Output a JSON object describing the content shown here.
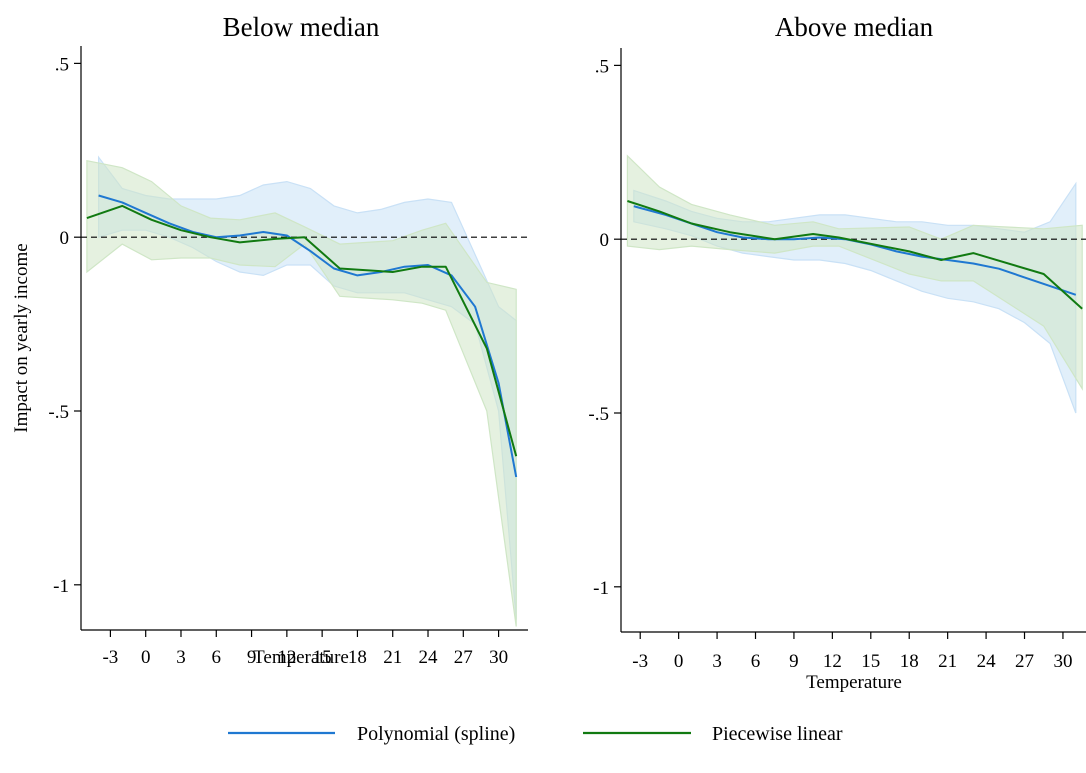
{
  "legend": {
    "placement": "bottom",
    "items": [
      {
        "label": "Polynomial (spline)",
        "color": "#1f78d1"
      },
      {
        "label": "Piecewise linear",
        "color": "#117a11"
      }
    ]
  },
  "colors": {
    "spline_band": "#c9e1f6",
    "piecewise_band": "#cfe6c6",
    "zero_line": "#000000"
  },
  "chart_data": [
    {
      "type": "line",
      "title": "Below median",
      "xlabel": "Temperature",
      "ylabel": "Impact on yearly income",
      "xlim": [
        -5.5,
        32.5
      ],
      "ylim": [
        -1.13,
        0.55
      ],
      "xticks": [
        -3,
        0,
        3,
        6,
        9,
        12,
        15,
        18,
        21,
        24,
        27,
        30
      ],
      "xtick_labels": [
        "-3",
        "0",
        "3",
        "6",
        "9",
        "12",
        "15",
        "18",
        "21",
        "24",
        "27",
        "30"
      ],
      "yticks": [
        0.5,
        0,
        -0.5,
        -1
      ],
      "ytick_labels": [
        ".5",
        "0",
        "-.5",
        "-1"
      ],
      "zero_line": true,
      "grid": false,
      "series": [
        {
          "name": "Polynomial (spline)",
          "color": "#1f78d1",
          "x": [
            -4,
            -2,
            0,
            2,
            4,
            6,
            8,
            10,
            12,
            14,
            16,
            18,
            20,
            22,
            24,
            26,
            28,
            30,
            31.5
          ],
          "y": [
            0.12,
            0.1,
            0.07,
            0.04,
            0.015,
            0.0,
            0.005,
            0.015,
            0.005,
            -0.04,
            -0.09,
            -0.11,
            -0.1,
            -0.085,
            -0.08,
            -0.11,
            -0.2,
            -0.42,
            -0.69
          ],
          "ci_lower": [
            0.0,
            0.02,
            0.02,
            0.0,
            -0.03,
            -0.07,
            -0.1,
            -0.11,
            -0.08,
            -0.08,
            -0.14,
            -0.16,
            -0.16,
            -0.16,
            -0.18,
            -0.2,
            -0.25,
            -0.5,
            -1.1
          ],
          "ci_upper": [
            0.23,
            0.14,
            0.12,
            0.11,
            0.11,
            0.11,
            0.12,
            0.15,
            0.16,
            0.14,
            0.09,
            0.07,
            0.08,
            0.1,
            0.11,
            0.1,
            -0.05,
            -0.2,
            -0.24
          ]
        },
        {
          "name": "Piecewise linear",
          "color": "#117a11",
          "x": [
            -5,
            -2,
            0.5,
            3,
            5.5,
            8,
            11,
            13.5,
            16.5,
            21,
            23.5,
            25.5,
            29,
            31.5
          ],
          "y": [
            0.055,
            0.09,
            0.05,
            0.02,
            0.0,
            -0.015,
            -0.005,
            0.0,
            -0.09,
            -0.1,
            -0.085,
            -0.085,
            -0.32,
            -0.63
          ],
          "ci_lower": [
            -0.1,
            -0.02,
            -0.065,
            -0.06,
            -0.06,
            -0.08,
            -0.085,
            -0.02,
            -0.17,
            -0.18,
            -0.19,
            -0.21,
            -0.5,
            -1.12
          ],
          "ci_upper": [
            0.22,
            0.2,
            0.16,
            0.09,
            0.055,
            0.05,
            0.07,
            0.03,
            -0.02,
            -0.01,
            0.02,
            0.04,
            -0.13,
            -0.15
          ]
        }
      ]
    },
    {
      "type": "line",
      "title": "Above median",
      "xlabel": "Temperature",
      "ylabel": "",
      "xlim": [
        -4.5,
        31.8
      ],
      "ylim": [
        -1.13,
        0.55
      ],
      "xticks": [
        -3,
        0,
        3,
        6,
        9,
        12,
        15,
        18,
        21,
        24,
        27,
        30
      ],
      "xtick_labels": [
        "-3",
        "0",
        "3",
        "6",
        "9",
        "12",
        "15",
        "18",
        "21",
        "24",
        "27",
        "30"
      ],
      "yticks": [
        0.5,
        0,
        -0.5,
        -1
      ],
      "ytick_labels": [
        ".5",
        "0",
        "-.5",
        "-1"
      ],
      "zero_line": true,
      "grid": false,
      "series": [
        {
          "name": "Polynomial (spline)",
          "color": "#1f78d1",
          "x": [
            -3.5,
            -1,
            1,
            3,
            5,
            7,
            9,
            11,
            13,
            15,
            17,
            19,
            21,
            23,
            25,
            27,
            29,
            31
          ],
          "y": [
            0.095,
            0.07,
            0.045,
            0.02,
            0.005,
            0.0,
            0.0,
            0.005,
            0.0,
            -0.015,
            -0.035,
            -0.05,
            -0.06,
            -0.07,
            -0.085,
            -0.11,
            -0.135,
            -0.16
          ],
          "ci_lower": [
            0.05,
            0.03,
            0.01,
            -0.02,
            -0.04,
            -0.05,
            -0.06,
            -0.06,
            -0.07,
            -0.09,
            -0.12,
            -0.15,
            -0.17,
            -0.18,
            -0.2,
            -0.24,
            -0.3,
            -0.5
          ],
          "ci_upper": [
            0.14,
            0.11,
            0.08,
            0.06,
            0.05,
            0.05,
            0.06,
            0.07,
            0.07,
            0.06,
            0.05,
            0.05,
            0.04,
            0.04,
            0.03,
            0.02,
            0.05,
            0.16
          ]
        },
        {
          "name": "Piecewise linear",
          "color": "#117a11",
          "x": [
            -4,
            -1.5,
            1,
            4,
            7.5,
            10.5,
            12.5,
            18,
            20.5,
            23,
            28.5,
            31.5
          ],
          "y": [
            0.11,
            0.08,
            0.045,
            0.02,
            0.0,
            0.015,
            0.005,
            -0.035,
            -0.06,
            -0.04,
            -0.1,
            -0.2
          ],
          "ci_lower": [
            -0.02,
            -0.03,
            -0.02,
            -0.03,
            -0.04,
            -0.02,
            -0.02,
            -0.1,
            -0.12,
            -0.12,
            -0.25,
            -0.43
          ],
          "ci_upper": [
            0.24,
            0.15,
            0.1,
            0.07,
            0.04,
            0.05,
            0.03,
            0.035,
            0.0,
            0.04,
            0.03,
            0.04
          ]
        }
      ]
    }
  ]
}
